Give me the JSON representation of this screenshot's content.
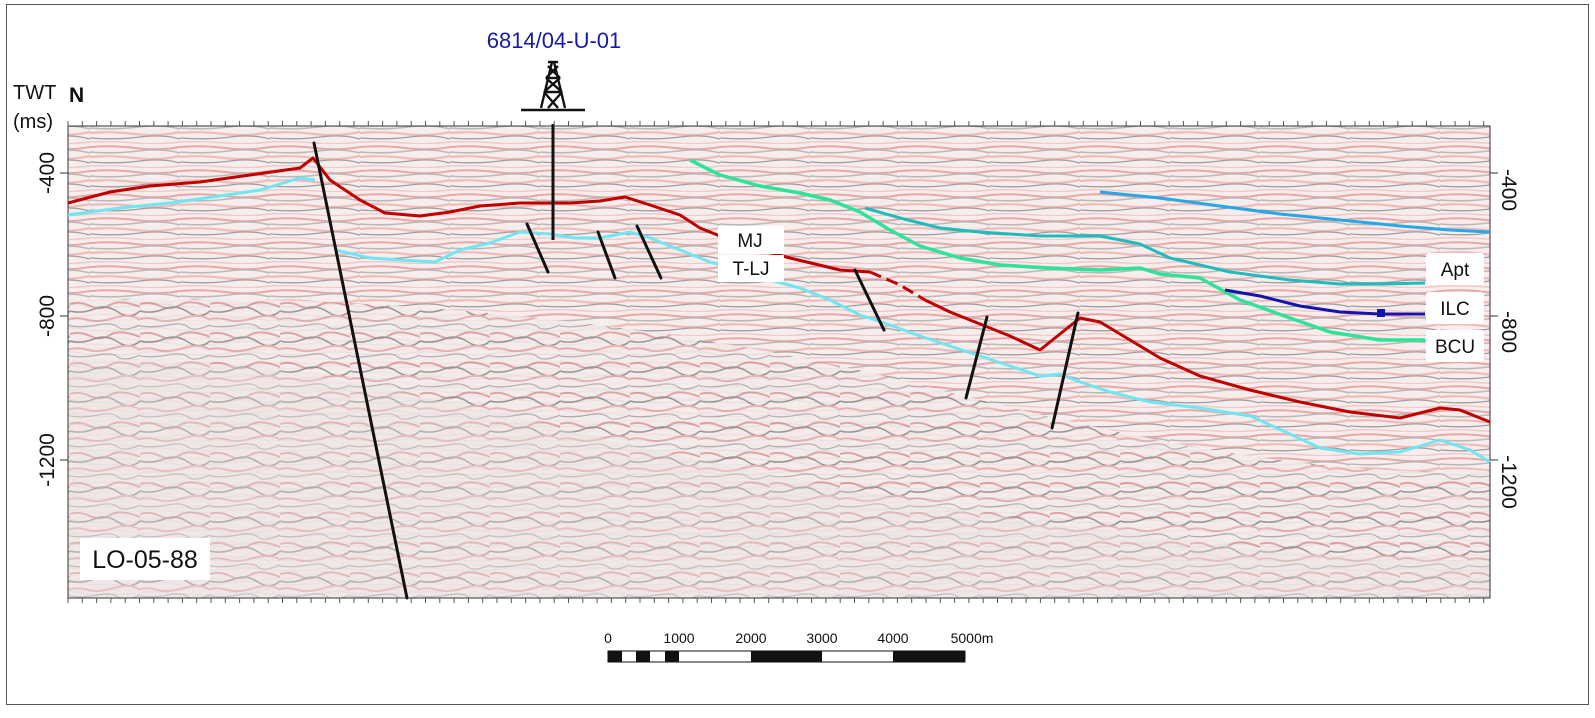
{
  "well": {
    "name": "6814/04-U-01"
  },
  "axis": {
    "title_line1": "TWT",
    "title_line2": "(ms)",
    "north": "N",
    "left_ticks": [
      "-400",
      "-800",
      "-1200"
    ],
    "right_ticks": [
      "-400",
      "-800",
      "-1200"
    ]
  },
  "horizons": {
    "mj": "MJ",
    "tlj": "T-LJ",
    "apt": "Apt",
    "ilc": "ILC",
    "bcu": "BCU"
  },
  "line_name": "LO-05-88",
  "scale_bar": {
    "labels": [
      "0",
      "1000",
      "2000",
      "3000",
      "4000",
      "5000m"
    ]
  },
  "colors": {
    "red_horizon": "#c00000",
    "cyan_horizon": "#6fe6f0",
    "green_horizon": "#2de39a",
    "teal_horizon": "#1fbcbc",
    "blue_horizon": "#27a7e6",
    "navy_horizon": "#1414a8",
    "well_label": "#1a1aa0"
  }
}
